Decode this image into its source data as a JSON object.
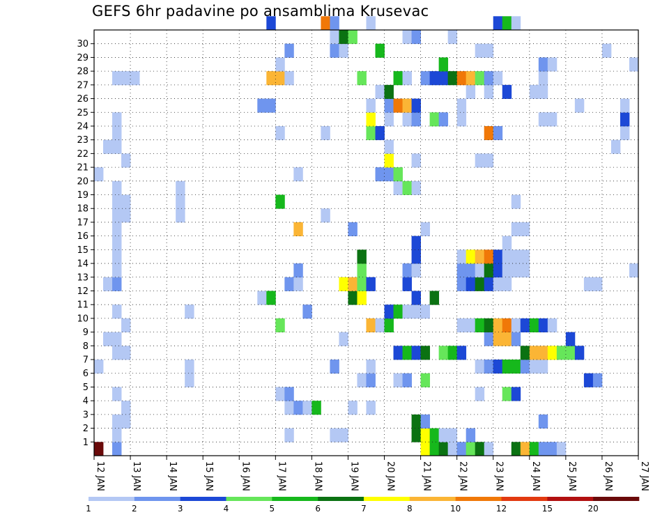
{
  "chart_data": {
    "type": "heatmap",
    "title": "GEFS 6hr padavine po ansamblima Krusevac",
    "x_tick_labels": [
      "12 JAN",
      "13 JAN",
      "14 JAN",
      "15 JAN",
      "16 JAN",
      "17 JAN",
      "18 JAN",
      "19 JAN",
      "20 JAN",
      "21 JAN",
      "22 JAN",
      "23 JAN",
      "24 JAN",
      "25 JAN",
      "26 JAN",
      "27 JAN"
    ],
    "y_tick_labels": [
      "1",
      "2",
      "3",
      "4",
      "5",
      "6",
      "7",
      "8",
      "9",
      "10",
      "11",
      "12",
      "13",
      "14",
      "15",
      "16",
      "17",
      "18",
      "19",
      "20",
      "21",
      "22",
      "23",
      "24",
      "25",
      "26",
      "27",
      "28",
      "29",
      "30"
    ],
    "x_range": [
      0,
      60
    ],
    "y_range": [
      0,
      30
    ],
    "grid": true,
    "legend_position": "bottom",
    "color_levels": [
      {
        "label": "1",
        "color": "#b4c8f4"
      },
      {
        "label": "2",
        "color": "#6f95ee"
      },
      {
        "label": "3",
        "color": "#1c48d6"
      },
      {
        "label": "4",
        "color": "#66e65a"
      },
      {
        "label": "5",
        "color": "#16b81c"
      },
      {
        "label": "6",
        "color": "#0b7212"
      },
      {
        "label": "7",
        "color": "#ffff00"
      },
      {
        "label": "8",
        "color": "#fbb535"
      },
      {
        "label": "10",
        "color": "#f07808"
      },
      {
        "label": "12",
        "color": "#e23a10"
      },
      {
        "label": "15",
        "color": "#b21010"
      },
      {
        "label": "20",
        "color": "#6a0a0a"
      }
    ],
    "cells": [
      {
        "x": 0,
        "y": 0,
        "c": 11
      },
      {
        "x": 2,
        "y": 0,
        "c": 1
      },
      {
        "x": 36,
        "y": 0,
        "c": 6
      },
      {
        "x": 37,
        "y": 0,
        "c": 4
      },
      {
        "x": 38,
        "y": 0,
        "c": 5
      },
      {
        "x": 39,
        "y": 0,
        "c": 0
      },
      {
        "x": 40,
        "y": 0,
        "c": 1
      },
      {
        "x": 41,
        "y": 0,
        "c": 3
      },
      {
        "x": 42,
        "y": 0,
        "c": 5
      },
      {
        "x": 43,
        "y": 0,
        "c": 0
      },
      {
        "x": 46,
        "y": 0,
        "c": 5
      },
      {
        "x": 47,
        "y": 0,
        "c": 7
      },
      {
        "x": 48,
        "y": 0,
        "c": 4
      },
      {
        "x": 49,
        "y": 0,
        "c": 1
      },
      {
        "x": 50,
        "y": 0,
        "c": 1
      },
      {
        "x": 51,
        "y": 0,
        "c": 0
      },
      {
        "x": 2,
        "y": 1,
        "c": 0
      },
      {
        "x": 21,
        "y": 1,
        "c": 0
      },
      {
        "x": 26,
        "y": 1,
        "c": 0
      },
      {
        "x": 27,
        "y": 1,
        "c": 0
      },
      {
        "x": 35,
        "y": 1,
        "c": 5
      },
      {
        "x": 36,
        "y": 1,
        "c": 6
      },
      {
        "x": 37,
        "y": 1,
        "c": 4
      },
      {
        "x": 38,
        "y": 1,
        "c": 0
      },
      {
        "x": 39,
        "y": 1,
        "c": 0
      },
      {
        "x": 41,
        "y": 1,
        "c": 1
      },
      {
        "x": 2,
        "y": 2,
        "c": 0
      },
      {
        "x": 3,
        "y": 2,
        "c": 0
      },
      {
        "x": 35,
        "y": 2,
        "c": 5
      },
      {
        "x": 36,
        "y": 2,
        "c": 1
      },
      {
        "x": 49,
        "y": 2,
        "c": 1
      },
      {
        "x": 3,
        "y": 3,
        "c": 0
      },
      {
        "x": 21,
        "y": 3,
        "c": 0
      },
      {
        "x": 22,
        "y": 3,
        "c": 1
      },
      {
        "x": 23,
        "y": 3,
        "c": 0
      },
      {
        "x": 24,
        "y": 3,
        "c": 4
      },
      {
        "x": 28,
        "y": 3,
        "c": 0
      },
      {
        "x": 30,
        "y": 3,
        "c": 0
      },
      {
        "x": 2,
        "y": 4,
        "c": 0
      },
      {
        "x": 20,
        "y": 4,
        "c": 0
      },
      {
        "x": 21,
        "y": 4,
        "c": 1
      },
      {
        "x": 42,
        "y": 4,
        "c": 0
      },
      {
        "x": 45,
        "y": 4,
        "c": 3
      },
      {
        "x": 46,
        "y": 4,
        "c": 2
      },
      {
        "x": 10,
        "y": 5,
        "c": 0
      },
      {
        "x": 29,
        "y": 5,
        "c": 0
      },
      {
        "x": 30,
        "y": 5,
        "c": 1
      },
      {
        "x": 33,
        "y": 5,
        "c": 0
      },
      {
        "x": 34,
        "y": 5,
        "c": 1
      },
      {
        "x": 36,
        "y": 5,
        "c": 3
      },
      {
        "x": 54,
        "y": 5,
        "c": 2
      },
      {
        "x": 55,
        "y": 5,
        "c": 1
      },
      {
        "x": 0,
        "y": 6,
        "c": 0
      },
      {
        "x": 10,
        "y": 6,
        "c": 0
      },
      {
        "x": 26,
        "y": 6,
        "c": 1
      },
      {
        "x": 30,
        "y": 6,
        "c": 0
      },
      {
        "x": 42,
        "y": 6,
        "c": 0
      },
      {
        "x": 43,
        "y": 6,
        "c": 1
      },
      {
        "x": 44,
        "y": 6,
        "c": 2
      },
      {
        "x": 45,
        "y": 6,
        "c": 4
      },
      {
        "x": 46,
        "y": 6,
        "c": 4
      },
      {
        "x": 47,
        "y": 6,
        "c": 1
      },
      {
        "x": 48,
        "y": 6,
        "c": 0
      },
      {
        "x": 49,
        "y": 6,
        "c": 0
      },
      {
        "x": 2,
        "y": 7,
        "c": 0
      },
      {
        "x": 3,
        "y": 7,
        "c": 0
      },
      {
        "x": 33,
        "y": 7,
        "c": 2
      },
      {
        "x": 34,
        "y": 7,
        "c": 4
      },
      {
        "x": 35,
        "y": 7,
        "c": 2
      },
      {
        "x": 36,
        "y": 7,
        "c": 5
      },
      {
        "x": 38,
        "y": 7,
        "c": 3
      },
      {
        "x": 39,
        "y": 7,
        "c": 4
      },
      {
        "x": 40,
        "y": 7,
        "c": 2
      },
      {
        "x": 47,
        "y": 7,
        "c": 5
      },
      {
        "x": 48,
        "y": 7,
        "c": 7
      },
      {
        "x": 49,
        "y": 7,
        "c": 7
      },
      {
        "x": 50,
        "y": 7,
        "c": 6
      },
      {
        "x": 51,
        "y": 7,
        "c": 3
      },
      {
        "x": 52,
        "y": 7,
        "c": 3
      },
      {
        "x": 53,
        "y": 7,
        "c": 2
      },
      {
        "x": 1,
        "y": 8,
        "c": 0
      },
      {
        "x": 2,
        "y": 8,
        "c": 0
      },
      {
        "x": 27,
        "y": 8,
        "c": 0
      },
      {
        "x": 43,
        "y": 8,
        "c": 1
      },
      {
        "x": 44,
        "y": 8,
        "c": 7
      },
      {
        "x": 45,
        "y": 8,
        "c": 7
      },
      {
        "x": 46,
        "y": 8,
        "c": 1
      },
      {
        "x": 52,
        "y": 8,
        "c": 2
      },
      {
        "x": 3,
        "y": 9,
        "c": 0
      },
      {
        "x": 20,
        "y": 9,
        "c": 3
      },
      {
        "x": 30,
        "y": 9,
        "c": 7
      },
      {
        "x": 31,
        "y": 9,
        "c": 0
      },
      {
        "x": 32,
        "y": 9,
        "c": 4
      },
      {
        "x": 40,
        "y": 9,
        "c": 0
      },
      {
        "x": 41,
        "y": 9,
        "c": 0
      },
      {
        "x": 42,
        "y": 9,
        "c": 4
      },
      {
        "x": 43,
        "y": 9,
        "c": 5
      },
      {
        "x": 44,
        "y": 9,
        "c": 7
      },
      {
        "x": 45,
        "y": 9,
        "c": 8
      },
      {
        "x": 46,
        "y": 9,
        "c": 0
      },
      {
        "x": 47,
        "y": 9,
        "c": 2
      },
      {
        "x": 48,
        "y": 9,
        "c": 4
      },
      {
        "x": 49,
        "y": 9,
        "c": 2
      },
      {
        "x": 50,
        "y": 9,
        "c": 0
      },
      {
        "x": 2,
        "y": 10,
        "c": 0
      },
      {
        "x": 10,
        "y": 10,
        "c": 0
      },
      {
        "x": 23,
        "y": 10,
        "c": 1
      },
      {
        "x": 32,
        "y": 10,
        "c": 2
      },
      {
        "x": 33,
        "y": 10,
        "c": 4
      },
      {
        "x": 34,
        "y": 10,
        "c": 0
      },
      {
        "x": 35,
        "y": 10,
        "c": 0
      },
      {
        "x": 36,
        "y": 10,
        "c": 0
      },
      {
        "x": 18,
        "y": 11,
        "c": 0
      },
      {
        "x": 19,
        "y": 11,
        "c": 4
      },
      {
        "x": 28,
        "y": 11,
        "c": 5
      },
      {
        "x": 29,
        "y": 11,
        "c": 6
      },
      {
        "x": 35,
        "y": 11,
        "c": 2
      },
      {
        "x": 37,
        "y": 11,
        "c": 5
      },
      {
        "x": 1,
        "y": 12,
        "c": 0
      },
      {
        "x": 2,
        "y": 12,
        "c": 1
      },
      {
        "x": 21,
        "y": 12,
        "c": 1
      },
      {
        "x": 22,
        "y": 12,
        "c": 0
      },
      {
        "x": 27,
        "y": 12,
        "c": 6
      },
      {
        "x": 28,
        "y": 12,
        "c": 7
      },
      {
        "x": 29,
        "y": 12,
        "c": 3
      },
      {
        "x": 30,
        "y": 12,
        "c": 2
      },
      {
        "x": 34,
        "y": 12,
        "c": 2
      },
      {
        "x": 40,
        "y": 12,
        "c": 1
      },
      {
        "x": 41,
        "y": 12,
        "c": 2
      },
      {
        "x": 42,
        "y": 12,
        "c": 5
      },
      {
        "x": 43,
        "y": 12,
        "c": 2
      },
      {
        "x": 44,
        "y": 12,
        "c": 0
      },
      {
        "x": 45,
        "y": 12,
        "c": 0
      },
      {
        "x": 54,
        "y": 12,
        "c": 0
      },
      {
        "x": 55,
        "y": 12,
        "c": 0
      },
      {
        "x": 2,
        "y": 13,
        "c": 0
      },
      {
        "x": 22,
        "y": 13,
        "c": 1
      },
      {
        "x": 29,
        "y": 13,
        "c": 3
      },
      {
        "x": 34,
        "y": 13,
        "c": 1
      },
      {
        "x": 35,
        "y": 13,
        "c": 0
      },
      {
        "x": 40,
        "y": 13,
        "c": 1
      },
      {
        "x": 41,
        "y": 13,
        "c": 1
      },
      {
        "x": 42,
        "y": 13,
        "c": 0
      },
      {
        "x": 43,
        "y": 13,
        "c": 5
      },
      {
        "x": 44,
        "y": 13,
        "c": 2
      },
      {
        "x": 45,
        "y": 13,
        "c": 0
      },
      {
        "x": 46,
        "y": 13,
        "c": 0
      },
      {
        "x": 47,
        "y": 13,
        "c": 0
      },
      {
        "x": 59,
        "y": 13,
        "c": 0
      },
      {
        "x": 2,
        "y": 14,
        "c": 0
      },
      {
        "x": 29,
        "y": 14,
        "c": 5
      },
      {
        "x": 35,
        "y": 14,
        "c": 2
      },
      {
        "x": 40,
        "y": 14,
        "c": 0
      },
      {
        "x": 41,
        "y": 14,
        "c": 6
      },
      {
        "x": 42,
        "y": 14,
        "c": 7
      },
      {
        "x": 43,
        "y": 14,
        "c": 8
      },
      {
        "x": 44,
        "y": 14,
        "c": 2
      },
      {
        "x": 45,
        "y": 14,
        "c": 0
      },
      {
        "x": 46,
        "y": 14,
        "c": 0
      },
      {
        "x": 47,
        "y": 14,
        "c": 0
      },
      {
        "x": 2,
        "y": 15,
        "c": 0
      },
      {
        "x": 35,
        "y": 15,
        "c": 2
      },
      {
        "x": 45,
        "y": 15,
        "c": 0
      },
      {
        "x": 2,
        "y": 16,
        "c": 0
      },
      {
        "x": 22,
        "y": 16,
        "c": 7
      },
      {
        "x": 28,
        "y": 16,
        "c": 1
      },
      {
        "x": 36,
        "y": 16,
        "c": 0
      },
      {
        "x": 46,
        "y": 16,
        "c": 0
      },
      {
        "x": 47,
        "y": 16,
        "c": 0
      },
      {
        "x": 2,
        "y": 17,
        "c": 0
      },
      {
        "x": 3,
        "y": 17,
        "c": 0
      },
      {
        "x": 9,
        "y": 17,
        "c": 0
      },
      {
        "x": 25,
        "y": 17,
        "c": 0
      },
      {
        "x": 2,
        "y": 18,
        "c": 0
      },
      {
        "x": 3,
        "y": 18,
        "c": 0
      },
      {
        "x": 9,
        "y": 18,
        "c": 0
      },
      {
        "x": 20,
        "y": 18,
        "c": 4
      },
      {
        "x": 46,
        "y": 18,
        "c": 0
      },
      {
        "x": 2,
        "y": 19,
        "c": 0
      },
      {
        "x": 9,
        "y": 19,
        "c": 0
      },
      {
        "x": 33,
        "y": 19,
        "c": 0
      },
      {
        "x": 34,
        "y": 19,
        "c": 3
      },
      {
        "x": 35,
        "y": 19,
        "c": 0
      },
      {
        "x": 0,
        "y": 20,
        "c": 0
      },
      {
        "x": 22,
        "y": 20,
        "c": 0
      },
      {
        "x": 31,
        "y": 20,
        "c": 1
      },
      {
        "x": 32,
        "y": 20,
        "c": 1
      },
      {
        "x": 33,
        "y": 20,
        "c": 3
      },
      {
        "x": 3,
        "y": 21,
        "c": 0
      },
      {
        "x": 32,
        "y": 21,
        "c": 6
      },
      {
        "x": 35,
        "y": 21,
        "c": 0
      },
      {
        "x": 42,
        "y": 21,
        "c": 0
      },
      {
        "x": 43,
        "y": 21,
        "c": 0
      },
      {
        "x": 1,
        "y": 22,
        "c": 0
      },
      {
        "x": 2,
        "y": 22,
        "c": 0
      },
      {
        "x": 32,
        "y": 22,
        "c": 0
      },
      {
        "x": 57,
        "y": 22,
        "c": 0
      },
      {
        "x": 2,
        "y": 23,
        "c": 0
      },
      {
        "x": 20,
        "y": 23,
        "c": 0
      },
      {
        "x": 25,
        "y": 23,
        "c": 0
      },
      {
        "x": 30,
        "y": 23,
        "c": 3
      },
      {
        "x": 31,
        "y": 23,
        "c": 2
      },
      {
        "x": 43,
        "y": 23,
        "c": 8
      },
      {
        "x": 44,
        "y": 23,
        "c": 1
      },
      {
        "x": 58,
        "y": 23,
        "c": 0
      },
      {
        "x": 2,
        "y": 24,
        "c": 0
      },
      {
        "x": 30,
        "y": 24,
        "c": 6
      },
      {
        "x": 32,
        "y": 24,
        "c": 0
      },
      {
        "x": 34,
        "y": 24,
        "c": 0
      },
      {
        "x": 35,
        "y": 24,
        "c": 1
      },
      {
        "x": 37,
        "y": 24,
        "c": 3
      },
      {
        "x": 38,
        "y": 24,
        "c": 1
      },
      {
        "x": 40,
        "y": 24,
        "c": 0
      },
      {
        "x": 49,
        "y": 24,
        "c": 0
      },
      {
        "x": 50,
        "y": 24,
        "c": 0
      },
      {
        "x": 58,
        "y": 24,
        "c": 2
      },
      {
        "x": 18,
        "y": 25,
        "c": 1
      },
      {
        "x": 19,
        "y": 25,
        "c": 1
      },
      {
        "x": 30,
        "y": 25,
        "c": 0
      },
      {
        "x": 32,
        "y": 25,
        "c": 1
      },
      {
        "x": 33,
        "y": 25,
        "c": 8
      },
      {
        "x": 34,
        "y": 25,
        "c": 7
      },
      {
        "x": 35,
        "y": 25,
        "c": 2
      },
      {
        "x": 40,
        "y": 25,
        "c": 0
      },
      {
        "x": 53,
        "y": 25,
        "c": 0
      },
      {
        "x": 58,
        "y": 25,
        "c": 0
      },
      {
        "x": 31,
        "y": 26,
        "c": 0
      },
      {
        "x": 32,
        "y": 26,
        "c": 5
      },
      {
        "x": 41,
        "y": 26,
        "c": 0
      },
      {
        "x": 43,
        "y": 26,
        "c": 0
      },
      {
        "x": 45,
        "y": 26,
        "c": 2
      },
      {
        "x": 48,
        "y": 26,
        "c": 0
      },
      {
        "x": 49,
        "y": 26,
        "c": 0
      },
      {
        "x": 2,
        "y": 27,
        "c": 0
      },
      {
        "x": 3,
        "y": 27,
        "c": 0
      },
      {
        "x": 4,
        "y": 27,
        "c": 0
      },
      {
        "x": 19,
        "y": 27,
        "c": 7
      },
      {
        "x": 20,
        "y": 27,
        "c": 7
      },
      {
        "x": 21,
        "y": 27,
        "c": 0
      },
      {
        "x": 29,
        "y": 27,
        "c": 3
      },
      {
        "x": 33,
        "y": 27,
        "c": 4
      },
      {
        "x": 34,
        "y": 27,
        "c": 0
      },
      {
        "x": 36,
        "y": 27,
        "c": 1
      },
      {
        "x": 37,
        "y": 27,
        "c": 2
      },
      {
        "x": 38,
        "y": 27,
        "c": 2
      },
      {
        "x": 39,
        "y": 27,
        "c": 5
      },
      {
        "x": 40,
        "y": 27,
        "c": 8
      },
      {
        "x": 41,
        "y": 27,
        "c": 7
      },
      {
        "x": 42,
        "y": 27,
        "c": 3
      },
      {
        "x": 43,
        "y": 27,
        "c": 1
      },
      {
        "x": 44,
        "y": 27,
        "c": 0
      },
      {
        "x": 49,
        "y": 27,
        "c": 0
      },
      {
        "x": 20,
        "y": 28,
        "c": 0
      },
      {
        "x": 38,
        "y": 28,
        "c": 4
      },
      {
        "x": 49,
        "y": 28,
        "c": 1
      },
      {
        "x": 50,
        "y": 28,
        "c": 0
      },
      {
        "x": 59,
        "y": 28,
        "c": 0
      },
      {
        "x": 21,
        "y": 29,
        "c": 1
      },
      {
        "x": 26,
        "y": 29,
        "c": 1
      },
      {
        "x": 27,
        "y": 29,
        "c": 0
      },
      {
        "x": 31,
        "y": 29,
        "c": 4
      },
      {
        "x": 42,
        "y": 29,
        "c": 0
      },
      {
        "x": 43,
        "y": 29,
        "c": 0
      },
      {
        "x": 56,
        "y": 29,
        "c": 0
      },
      {
        "x": 26,
        "y": 30,
        "c": 0
      },
      {
        "x": 27,
        "y": 30,
        "c": 5
      },
      {
        "x": 28,
        "y": 30,
        "c": 3
      },
      {
        "x": 34,
        "y": 30,
        "c": 0
      },
      {
        "x": 35,
        "y": 30,
        "c": 1
      },
      {
        "x": 39,
        "y": 30,
        "c": 0
      },
      {
        "x": 19,
        "y": 31,
        "c": 2
      },
      {
        "x": 25,
        "y": 31,
        "c": 8
      },
      {
        "x": 26,
        "y": 31,
        "c": 1
      },
      {
        "x": 30,
        "y": 31,
        "c": 0
      },
      {
        "x": 44,
        "y": 31,
        "c": 2
      },
      {
        "x": 45,
        "y": 31,
        "c": 4
      },
      {
        "x": 46,
        "y": 31,
        "c": 0
      }
    ]
  }
}
